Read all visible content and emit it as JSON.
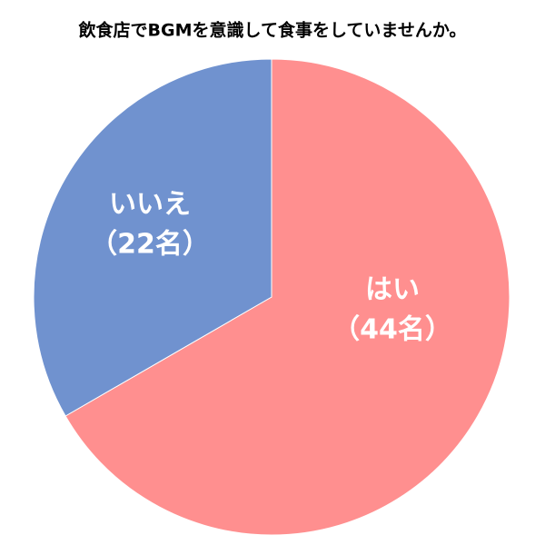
{
  "chart_data": {
    "type": "pie",
    "title": "飲食店でBGMを意識して食事をしていませんか。",
    "categories": [
      "はい",
      "いいえ"
    ],
    "values": [
      44,
      22
    ],
    "value_labels": [
      "（44名）",
      "（22名）"
    ],
    "colors": [
      "#ff8f8f",
      "#7092cf"
    ]
  }
}
